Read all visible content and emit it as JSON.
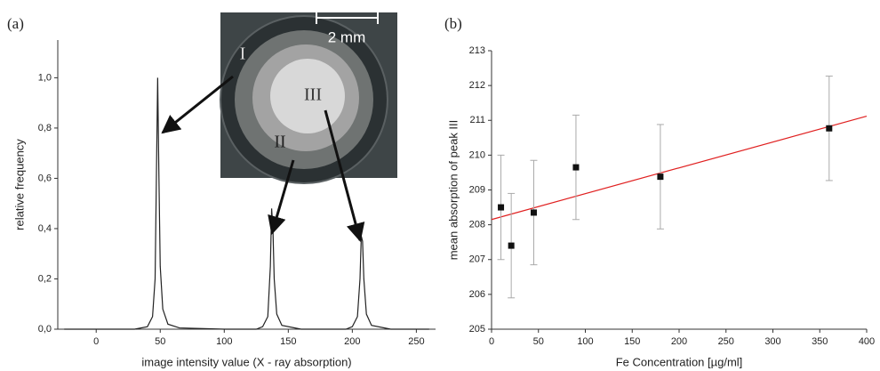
{
  "chart_data": [
    {
      "type": "line",
      "panel_label": "(a)",
      "x_label": "image intensity value (X - ray absorption)",
      "y_label": "relative frequency",
      "x": [
        -25,
        30,
        40,
        44,
        46,
        47,
        48,
        49,
        50,
        52,
        56,
        65,
        100,
        125,
        130,
        134,
        136,
        137,
        138,
        139,
        141,
        145,
        160,
        195,
        200,
        204,
        206,
        207,
        208,
        209,
        211,
        215,
        230,
        260
      ],
      "values": [
        0,
        0,
        0.01,
        0.05,
        0.2,
        0.6,
        1.0,
        0.6,
        0.25,
        0.08,
        0.02,
        0.005,
        0,
        0,
        0.01,
        0.05,
        0.25,
        0.48,
        0.4,
        0.2,
        0.06,
        0.015,
        0,
        0,
        0.01,
        0.05,
        0.2,
        0.37,
        0.35,
        0.2,
        0.06,
        0.015,
        0,
        0
      ],
      "color": "#222222",
      "xlim": [
        -30,
        265
      ],
      "xticks": [
        0,
        50,
        100,
        150,
        200,
        250
      ],
      "ylim": [
        0,
        1.15
      ],
      "yticks": [
        {
          "value": 0,
          "label": "0,0"
        },
        {
          "value": 0.2,
          "label": "0,2"
        },
        {
          "value": 0.4,
          "label": "0,4"
        },
        {
          "value": 0.6,
          "label": "0,6"
        },
        {
          "value": 0.8,
          "label": "0,8"
        },
        {
          "value": 1.0,
          "label": "1,0"
        }
      ],
      "inset_labels": [
        "I",
        "II",
        "III"
      ],
      "scale_bar_label": "2 mm"
    },
    {
      "type": "scatter",
      "panel_label": "(b)",
      "x_label": "Fe Concentration [µg/ml]",
      "y_label": "mean absorption of peak III",
      "x": [
        10,
        21,
        45,
        90,
        180,
        360
      ],
      "values": [
        208.5,
        207.4,
        208.35,
        209.65,
        209.38,
        210.77
      ],
      "errors": [
        1.5,
        1.5,
        1.5,
        1.5,
        1.5,
        1.5
      ],
      "color": "#111111",
      "error_color": "#aaaaaa",
      "fit_line": {
        "x": [
          0,
          400
        ],
        "y": [
          208.15,
          211.12
        ],
        "color": "#e02020"
      },
      "xlim": [
        0,
        400
      ],
      "xticks": [
        0,
        50,
        100,
        150,
        200,
        250,
        300,
        350,
        400
      ],
      "ylim": [
        205,
        213
      ],
      "yticks": [
        205,
        206,
        207,
        208,
        209,
        210,
        211,
        212,
        213
      ]
    }
  ]
}
